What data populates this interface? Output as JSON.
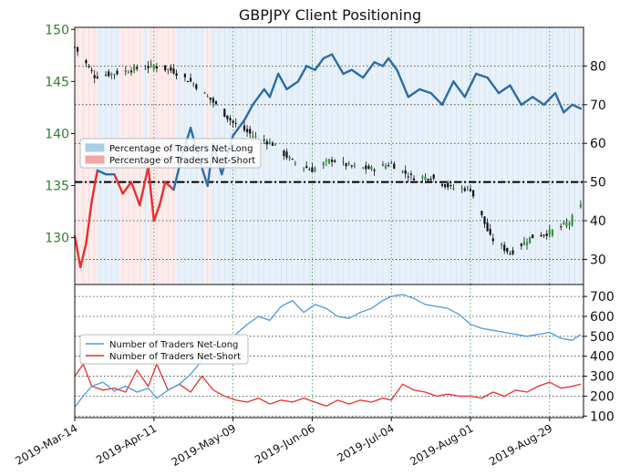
{
  "chart_data": [
    {
      "type": "line",
      "title": "GBPJPY Client Positioning",
      "x_ticks": [
        "2019-Mar-14",
        "2019-Apr-11",
        "2019-May-09",
        "2019-Jun-06",
        "2019-Jul-04",
        "2019-Aug-01",
        "2019-Aug-29"
      ],
      "price_axis": {
        "ticks": [
          130,
          135,
          140,
          145,
          150
        ],
        "range": [
          125.5,
          150.2
        ],
        "color": "#2e7d32"
      },
      "percent_axis": {
        "ticks": [
          30,
          40,
          50,
          60,
          70,
          80
        ],
        "range": [
          23.5,
          90
        ]
      },
      "reference_line": {
        "axis": "percent",
        "value": 50,
        "style": "dash-dot"
      },
      "grid": true,
      "legend": {
        "placement": "center-left",
        "items": [
          {
            "label": "Percentage of Traders Net-Long",
            "color": "#a9cdea"
          },
          {
            "label": "Percentage of Traders Net-Short",
            "color": "#f4a6a6"
          }
        ]
      },
      "percent_long_series": {
        "dates": [
          "2019-03-14",
          "2019-03-16",
          "2019-03-18",
          "2019-03-20",
          "2019-03-22",
          "2019-03-25",
          "2019-03-28",
          "2019-03-31",
          "2019-04-03",
          "2019-04-06",
          "2019-04-09",
          "2019-04-11",
          "2019-04-13",
          "2019-04-15",
          "2019-04-18",
          "2019-04-21",
          "2019-04-24",
          "2019-04-27",
          "2019-04-30",
          "2019-05-02",
          "2019-05-05",
          "2019-05-09",
          "2019-05-13",
          "2019-05-16",
          "2019-05-20",
          "2019-05-22",
          "2019-05-25",
          "2019-05-28",
          "2019-06-01",
          "2019-06-04",
          "2019-06-07",
          "2019-06-10",
          "2019-06-13",
          "2019-06-17",
          "2019-06-20",
          "2019-06-24",
          "2019-06-28",
          "2019-07-01",
          "2019-07-03",
          "2019-07-06",
          "2019-07-10",
          "2019-07-14",
          "2019-07-18",
          "2019-07-22",
          "2019-07-26",
          "2019-07-30",
          "2019-08-03",
          "2019-08-07",
          "2019-08-11",
          "2019-08-15",
          "2019-08-19",
          "2019-08-23",
          "2019-08-27",
          "2019-08-31",
          "2019-09-03",
          "2019-09-06",
          "2019-09-09"
        ],
        "values": [
          36,
          28,
          34,
          45,
          53,
          52,
          52,
          47,
          50,
          44,
          54,
          40,
          44,
          50,
          48,
          57,
          64,
          56,
          49,
          60,
          52,
          62,
          66,
          70,
          74,
          72,
          78,
          74,
          76,
          80,
          79,
          82,
          83,
          78,
          79,
          77,
          81,
          80,
          82,
          79,
          72,
          74,
          73,
          70,
          76,
          72,
          78,
          77,
          73,
          75,
          70,
          72,
          70,
          73,
          68,
          70,
          69
        ]
      },
      "price_series": {
        "dates": [
          "2019-03-14",
          "2019-03-21",
          "2019-03-28",
          "2019-04-04",
          "2019-04-11",
          "2019-04-18",
          "2019-04-25",
          "2019-05-02",
          "2019-05-09",
          "2019-05-16",
          "2019-05-23",
          "2019-05-30",
          "2019-06-06",
          "2019-06-13",
          "2019-06-20",
          "2019-06-27",
          "2019-07-04",
          "2019-07-11",
          "2019-07-18",
          "2019-07-25",
          "2019-08-01",
          "2019-08-08",
          "2019-08-15",
          "2019-08-22",
          "2019-08-29",
          "2019-09-05",
          "2019-09-09"
        ],
        "values": [
          148.3,
          145.5,
          145.8,
          146.2,
          146.5,
          146.0,
          144.8,
          143.0,
          141.0,
          139.8,
          139.0,
          137.3,
          136.5,
          137.5,
          136.8,
          136.6,
          137.1,
          135.8,
          135.8,
          134.8,
          134.7,
          130.0,
          128.5,
          130.0,
          130.5,
          131.5,
          133.0
        ]
      }
    },
    {
      "type": "line",
      "y_ticks": [
        100,
        200,
        300,
        400,
        500,
        600,
        700
      ],
      "y_range": [
        92,
        760
      ],
      "grid": true,
      "legend": {
        "placement": "center-left",
        "items": [
          {
            "label": "Number of Traders Net-Long",
            "color": "#4a9be3"
          },
          {
            "label": "Number of Traders Net-Short",
            "color": "#e8302d"
          }
        ]
      },
      "long_series": {
        "dates": [
          "2019-03-14",
          "2019-03-17",
          "2019-03-20",
          "2019-03-24",
          "2019-03-28",
          "2019-04-01",
          "2019-04-05",
          "2019-04-09",
          "2019-04-12",
          "2019-04-16",
          "2019-04-20",
          "2019-04-24",
          "2019-04-28",
          "2019-05-02",
          "2019-05-06",
          "2019-05-10",
          "2019-05-14",
          "2019-05-18",
          "2019-05-22",
          "2019-05-26",
          "2019-05-30",
          "2019-06-03",
          "2019-06-07",
          "2019-06-11",
          "2019-06-15",
          "2019-06-19",
          "2019-06-23",
          "2019-06-27",
          "2019-07-01",
          "2019-07-04",
          "2019-07-08",
          "2019-07-12",
          "2019-07-16",
          "2019-07-20",
          "2019-07-24",
          "2019-07-28",
          "2019-08-01",
          "2019-08-05",
          "2019-08-09",
          "2019-08-13",
          "2019-08-17",
          "2019-08-21",
          "2019-08-25",
          "2019-08-29",
          "2019-09-02",
          "2019-09-06",
          "2019-09-09"
        ],
        "values": [
          145,
          200,
          250,
          270,
          225,
          250,
          220,
          240,
          190,
          230,
          260,
          310,
          380,
          480,
          450,
          510,
          560,
          600,
          580,
          650,
          680,
          620,
          660,
          640,
          600,
          590,
          620,
          640,
          680,
          700,
          710,
          690,
          660,
          650,
          640,
          610,
          560,
          540,
          530,
          520,
          510,
          500,
          510,
          520,
          490,
          480,
          510
        ]
      },
      "short_series": {
        "dates": [
          "2019-03-14",
          "2019-03-17",
          "2019-03-20",
          "2019-03-24",
          "2019-03-28",
          "2019-04-01",
          "2019-04-05",
          "2019-04-09",
          "2019-04-12",
          "2019-04-16",
          "2019-04-20",
          "2019-04-24",
          "2019-04-28",
          "2019-05-02",
          "2019-05-06",
          "2019-05-10",
          "2019-05-14",
          "2019-05-18",
          "2019-05-22",
          "2019-05-26",
          "2019-05-30",
          "2019-06-03",
          "2019-06-07",
          "2019-06-11",
          "2019-06-15",
          "2019-06-19",
          "2019-06-23",
          "2019-06-27",
          "2019-07-01",
          "2019-07-04",
          "2019-07-08",
          "2019-07-12",
          "2019-07-16",
          "2019-07-20",
          "2019-07-24",
          "2019-07-28",
          "2019-08-01",
          "2019-08-05",
          "2019-08-09",
          "2019-08-13",
          "2019-08-17",
          "2019-08-21",
          "2019-08-25",
          "2019-08-29",
          "2019-09-02",
          "2019-09-06",
          "2019-09-09"
        ],
        "values": [
          300,
          360,
          250,
          230,
          240,
          220,
          330,
          250,
          360,
          230,
          260,
          220,
          300,
          230,
          200,
          180,
          170,
          190,
          160,
          180,
          170,
          190,
          170,
          150,
          180,
          160,
          180,
          170,
          190,
          180,
          260,
          230,
          220,
          200,
          210,
          200,
          200,
          190,
          220,
          200,
          230,
          220,
          250,
          270,
          240,
          250,
          260
        ]
      }
    }
  ]
}
